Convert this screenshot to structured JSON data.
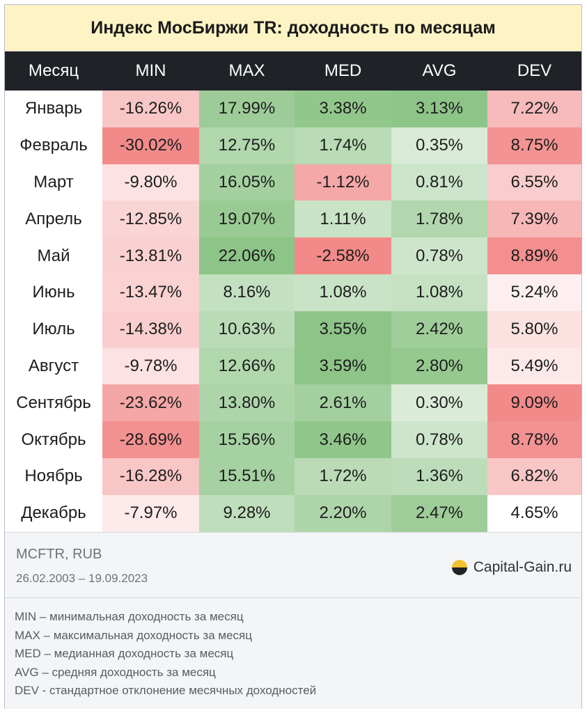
{
  "title": "Индекс МосБиржи TR: доходность по месяцам",
  "chart_data": {
    "type": "table",
    "columns": [
      "Месяц",
      "MIN",
      "MAX",
      "MED",
      "AVG",
      "DEV"
    ],
    "rows": [
      {
        "month": "Январь",
        "values": [
          "-16.26%",
          "17.99%",
          "3.38%",
          "3.13%",
          "7.22%"
        ]
      },
      {
        "month": "Февраль",
        "values": [
          "-30.02%",
          "12.75%",
          "1.74%",
          "0.35%",
          "8.75%"
        ]
      },
      {
        "month": "Март",
        "values": [
          "-9.80%",
          "16.05%",
          "-1.12%",
          "0.81%",
          "6.55%"
        ]
      },
      {
        "month": "Апрель",
        "values": [
          "-12.85%",
          "19.07%",
          "1.11%",
          "1.78%",
          "7.39%"
        ]
      },
      {
        "month": "Май",
        "values": [
          "-13.81%",
          "22.06%",
          "-2.58%",
          "0.78%",
          "8.89%"
        ]
      },
      {
        "month": "Июнь",
        "values": [
          "-13.47%",
          "8.16%",
          "1.08%",
          "1.08%",
          "5.24%"
        ]
      },
      {
        "month": "Июль",
        "values": [
          "-14.38%",
          "10.63%",
          "3.55%",
          "2.42%",
          "5.80%"
        ]
      },
      {
        "month": "Август",
        "values": [
          "-9.78%",
          "12.66%",
          "3.59%",
          "2.80%",
          "5.49%"
        ]
      },
      {
        "month": "Сентябрь",
        "values": [
          "-23.62%",
          "13.80%",
          "2.61%",
          "0.30%",
          "9.09%"
        ]
      },
      {
        "month": "Октябрь",
        "values": [
          "-28.69%",
          "15.56%",
          "3.46%",
          "0.78%",
          "8.78%"
        ]
      },
      {
        "month": "Ноябрь",
        "values": [
          "-16.28%",
          "15.51%",
          "1.72%",
          "1.36%",
          "6.82%"
        ]
      },
      {
        "month": "Декабрь",
        "values": [
          "-7.97%",
          "9.28%",
          "2.20%",
          "2.47%",
          "4.65%"
        ]
      }
    ]
  },
  "colors": {
    "title_bg": "#fdf3c4",
    "header_bg": "#1f2227",
    "negative": "#f28a8a",
    "positive": "#8dc487",
    "neutral": "#ffffff"
  },
  "footer": {
    "source": "MCFTR, RUB",
    "period": "26.02.2003 – 19.09.2023",
    "brand": "Capital-Gain.ru",
    "brand_icon": "half-circle-logo-icon"
  },
  "legend": [
    "MIN – минимальная доходность за месяц",
    "MAX – максимальная доходность за месяц",
    "MED – медианная доходность за месяц",
    "AVG – средняя доходность за месяц",
    "DEV - стандартное отклонение месячных доходностей"
  ]
}
